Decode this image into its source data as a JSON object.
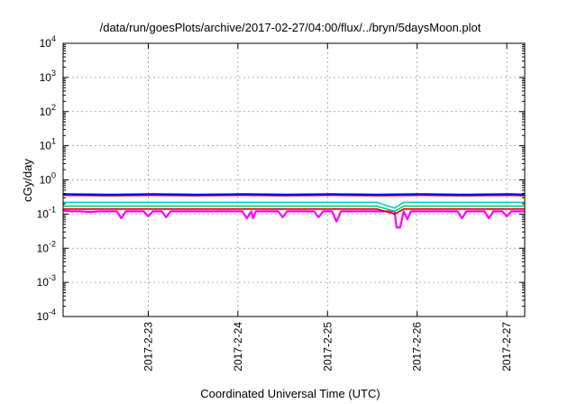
{
  "chart_data": {
    "type": "line",
    "title": "/data/run/goesPlots/archive/2017-02-27/04:00/flux/../bryn/5daysMoon.plot",
    "xlabel": "Coordinated Universal Time (UTC)",
    "ylabel": "cGy/day",
    "yscale": "log",
    "ylim": [
      0.0001,
      10000
    ],
    "xlim": [
      0,
      5.15
    ],
    "grid": true,
    "x_ticks": [
      {
        "value": 0.95,
        "label": "2017-2-23"
      },
      {
        "value": 1.95,
        "label": "2017-2-24"
      },
      {
        "value": 2.95,
        "label": "2017-2-25"
      },
      {
        "value": 3.95,
        "label": "2017-2-26"
      },
      {
        "value": 4.95,
        "label": "2017-2-27"
      }
    ],
    "y_ticks": [
      {
        "exp": "-4",
        "value": 0.0001
      },
      {
        "exp": "-3",
        "value": 0.001
      },
      {
        "exp": "-2",
        "value": 0.01
      },
      {
        "exp": "-1",
        "value": 0.1
      },
      {
        "exp": "0",
        "value": 1
      },
      {
        "exp": "1",
        "value": 10
      },
      {
        "exp": "2",
        "value": 100
      },
      {
        "exp": "3",
        "value": 1000
      },
      {
        "exp": "4",
        "value": 10000
      }
    ],
    "series": [
      {
        "color": "#ff00ff",
        "values": [
          [
            0,
            0.125
          ],
          [
            0.1,
            0.12
          ],
          [
            0.2,
            0.12
          ],
          [
            0.3,
            0.115
          ],
          [
            0.4,
            0.12
          ],
          [
            0.5,
            0.12
          ],
          [
            0.6,
            0.12
          ],
          [
            0.65,
            0.075
          ],
          [
            0.7,
            0.12
          ],
          [
            0.8,
            0.12
          ],
          [
            0.9,
            0.12
          ],
          [
            0.95,
            0.085
          ],
          [
            1.0,
            0.12
          ],
          [
            1.1,
            0.12
          ],
          [
            1.15,
            0.08
          ],
          [
            1.2,
            0.12
          ],
          [
            1.3,
            0.12
          ],
          [
            1.4,
            0.12
          ],
          [
            1.5,
            0.12
          ],
          [
            1.6,
            0.12
          ],
          [
            1.7,
            0.12
          ],
          [
            1.8,
            0.12
          ],
          [
            1.9,
            0.12
          ],
          [
            2.0,
            0.12
          ],
          [
            2.05,
            0.075
          ],
          [
            2.1,
            0.12
          ],
          [
            2.12,
            0.075
          ],
          [
            2.15,
            0.12
          ],
          [
            2.2,
            0.12
          ],
          [
            2.3,
            0.12
          ],
          [
            2.4,
            0.12
          ],
          [
            2.45,
            0.08
          ],
          [
            2.5,
            0.12
          ],
          [
            2.6,
            0.12
          ],
          [
            2.7,
            0.12
          ],
          [
            2.8,
            0.12
          ],
          [
            2.85,
            0.08
          ],
          [
            2.9,
            0.12
          ],
          [
            3.0,
            0.12
          ],
          [
            3.05,
            0.06
          ],
          [
            3.1,
            0.12
          ],
          [
            3.2,
            0.12
          ],
          [
            3.3,
            0.12
          ],
          [
            3.4,
            0.12
          ],
          [
            3.5,
            0.12
          ],
          [
            3.6,
            0.12
          ],
          [
            3.7,
            0.12
          ],
          [
            3.72,
            0.04
          ],
          [
            3.76,
            0.04
          ],
          [
            3.8,
            0.12
          ],
          [
            3.84,
            0.07
          ],
          [
            3.88,
            0.12
          ],
          [
            4.0,
            0.12
          ],
          [
            4.1,
            0.12
          ],
          [
            4.2,
            0.12
          ],
          [
            4.3,
            0.12
          ],
          [
            4.4,
            0.12
          ],
          [
            4.45,
            0.075
          ],
          [
            4.5,
            0.12
          ],
          [
            4.6,
            0.12
          ],
          [
            4.7,
            0.12
          ],
          [
            4.75,
            0.075
          ],
          [
            4.8,
            0.12
          ],
          [
            4.9,
            0.12
          ],
          [
            4.95,
            0.085
          ],
          [
            5.0,
            0.12
          ],
          [
            5.1,
            0.12
          ],
          [
            5.15,
            0.12
          ]
        ]
      },
      {
        "color": "#cc0000",
        "values": [
          [
            0,
            0.14
          ],
          [
            0.5,
            0.14
          ],
          [
            1.0,
            0.14
          ],
          [
            1.5,
            0.14
          ],
          [
            2.0,
            0.14
          ],
          [
            2.5,
            0.14
          ],
          [
            3.0,
            0.14
          ],
          [
            3.5,
            0.14
          ],
          [
            3.7,
            0.1
          ],
          [
            3.8,
            0.14
          ],
          [
            4.0,
            0.14
          ],
          [
            4.5,
            0.14
          ],
          [
            5.0,
            0.14
          ],
          [
            5.15,
            0.14
          ]
        ]
      },
      {
        "color": "#00cc66",
        "values": [
          [
            0,
            0.17
          ],
          [
            0.5,
            0.17
          ],
          [
            1.0,
            0.17
          ],
          [
            1.5,
            0.17
          ],
          [
            2.0,
            0.17
          ],
          [
            2.5,
            0.17
          ],
          [
            3.0,
            0.17
          ],
          [
            3.5,
            0.17
          ],
          [
            3.7,
            0.12
          ],
          [
            3.8,
            0.17
          ],
          [
            4.0,
            0.17
          ],
          [
            4.5,
            0.17
          ],
          [
            5.0,
            0.17
          ],
          [
            5.15,
            0.17
          ]
        ]
      },
      {
        "color": "#00cccc",
        "values": [
          [
            0,
            0.22
          ],
          [
            0.5,
            0.22
          ],
          [
            1.0,
            0.22
          ],
          [
            1.5,
            0.22
          ],
          [
            2.0,
            0.22
          ],
          [
            2.5,
            0.22
          ],
          [
            3.0,
            0.22
          ],
          [
            3.5,
            0.22
          ],
          [
            3.7,
            0.15
          ],
          [
            3.8,
            0.22
          ],
          [
            4.0,
            0.22
          ],
          [
            4.5,
            0.22
          ],
          [
            5.0,
            0.22
          ],
          [
            5.15,
            0.22
          ]
        ]
      },
      {
        "color": "#ff0000",
        "values": [
          [
            0,
            0.36
          ],
          [
            0.5,
            0.35
          ],
          [
            1.0,
            0.36
          ],
          [
            1.5,
            0.35
          ],
          [
            2.0,
            0.36
          ],
          [
            2.5,
            0.35
          ],
          [
            3.0,
            0.36
          ],
          [
            3.5,
            0.35
          ],
          [
            4.0,
            0.36
          ],
          [
            4.5,
            0.35
          ],
          [
            5.0,
            0.36
          ],
          [
            5.15,
            0.35
          ]
        ]
      },
      {
        "color": "#0000ff",
        "values": [
          [
            0,
            0.38
          ],
          [
            0.5,
            0.37
          ],
          [
            1.0,
            0.38
          ],
          [
            1.5,
            0.37
          ],
          [
            2.0,
            0.38
          ],
          [
            2.5,
            0.37
          ],
          [
            3.0,
            0.38
          ],
          [
            3.5,
            0.37
          ],
          [
            4.0,
            0.38
          ],
          [
            4.5,
            0.37
          ],
          [
            5.0,
            0.38
          ],
          [
            5.15,
            0.37
          ]
        ]
      }
    ]
  }
}
